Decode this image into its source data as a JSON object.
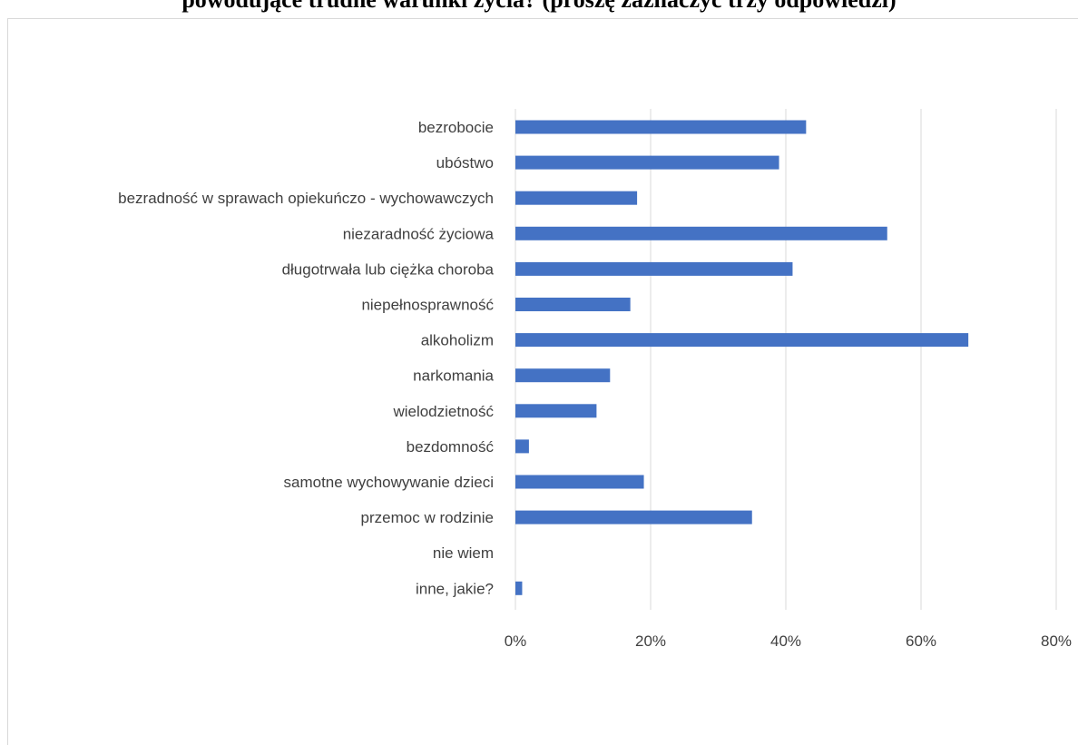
{
  "chart_data": {
    "type": "bar",
    "orientation": "horizontal",
    "title": "powodujące trudne warunki życia? (proszę zaznaczyć trzy odpowiedzi)",
    "categories": [
      "bezrobocie",
      "ubóstwo",
      "bezradność w sprawach opiekuńczo - wychowawczych",
      "niezaradność życiowa",
      "długotrwała lub ciężka choroba",
      "niepełnosprawność",
      "alkoholizm",
      "narkomania",
      "wielodzietność",
      "bezdomność",
      "samotne wychowywanie dzieci",
      "przemoc w rodzinie",
      "nie wiem",
      "inne, jakie?"
    ],
    "values": [
      43,
      39,
      18,
      55,
      41,
      17,
      67,
      14,
      12,
      2,
      19,
      35,
      0,
      1
    ],
    "unit": "%",
    "xlim": [
      0,
      80
    ],
    "xticks": [
      0,
      20,
      40,
      60,
      80
    ],
    "xtick_labels": [
      "0%",
      "20%",
      "40%",
      "60%",
      "80%"
    ],
    "grid": true,
    "bar_color": "#4472c4",
    "grid_color": "#d9d9d9"
  }
}
